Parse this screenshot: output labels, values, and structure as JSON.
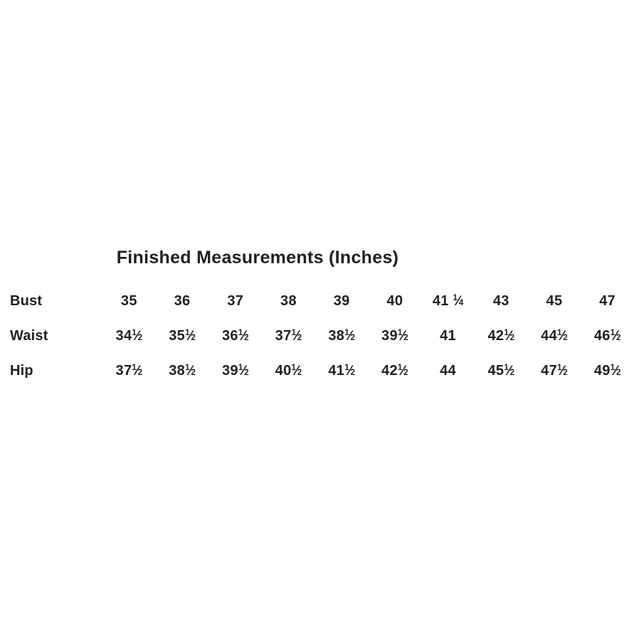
{
  "page": {
    "background_color": "#ffffff",
    "text_color": "#231f20"
  },
  "chart_data": {
    "type": "table",
    "title": "Finished Measurements (Inches)",
    "unit": "Inches",
    "row_headers": [
      "Bust",
      "Waist",
      "Hip"
    ],
    "rows": [
      [
        "35",
        "36",
        "37",
        "38",
        "39",
        "40",
        "41 ¼",
        "43",
        "45",
        "47"
      ],
      [
        "34½",
        "35½",
        "36½",
        "37½",
        "38½",
        "39½",
        "41",
        "42½",
        "44½",
        "46½"
      ],
      [
        "37½",
        "38½",
        "39½",
        "40½",
        "41½",
        "42½",
        "44",
        "45½",
        "47½",
        "49½"
      ]
    ],
    "layout": {
      "grid": false,
      "borders": false,
      "title_position": "top-center"
    }
  }
}
